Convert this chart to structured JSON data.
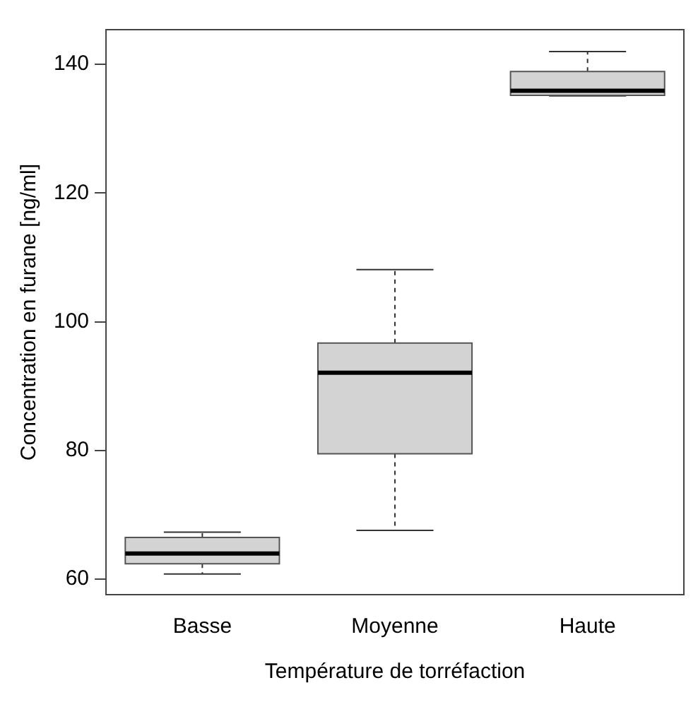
{
  "chart_data": {
    "type": "box",
    "xlabel": "Température de torréfaction",
    "ylabel": "Concentration en furane [ng/ml]",
    "categories": [
      "Basse",
      "Moyenne",
      "Haute"
    ],
    "color": "#d3d3d3",
    "ylim": [
      57.6,
      145.4
    ],
    "yticks": [
      60,
      80,
      100,
      120,
      140
    ],
    "grid": false,
    "legend": false,
    "boxes": [
      {
        "low": 60.8,
        "q1": 62.4,
        "median": 64.0,
        "q3": 66.5,
        "high": 67.3
      },
      {
        "low": 67.6,
        "q1": 79.5,
        "median": 92.1,
        "q3": 96.7,
        "high": 108.1
      },
      {
        "low": 135.1,
        "q1": 135.2,
        "median": 135.9,
        "q3": 138.9,
        "high": 142.0
      }
    ]
  }
}
